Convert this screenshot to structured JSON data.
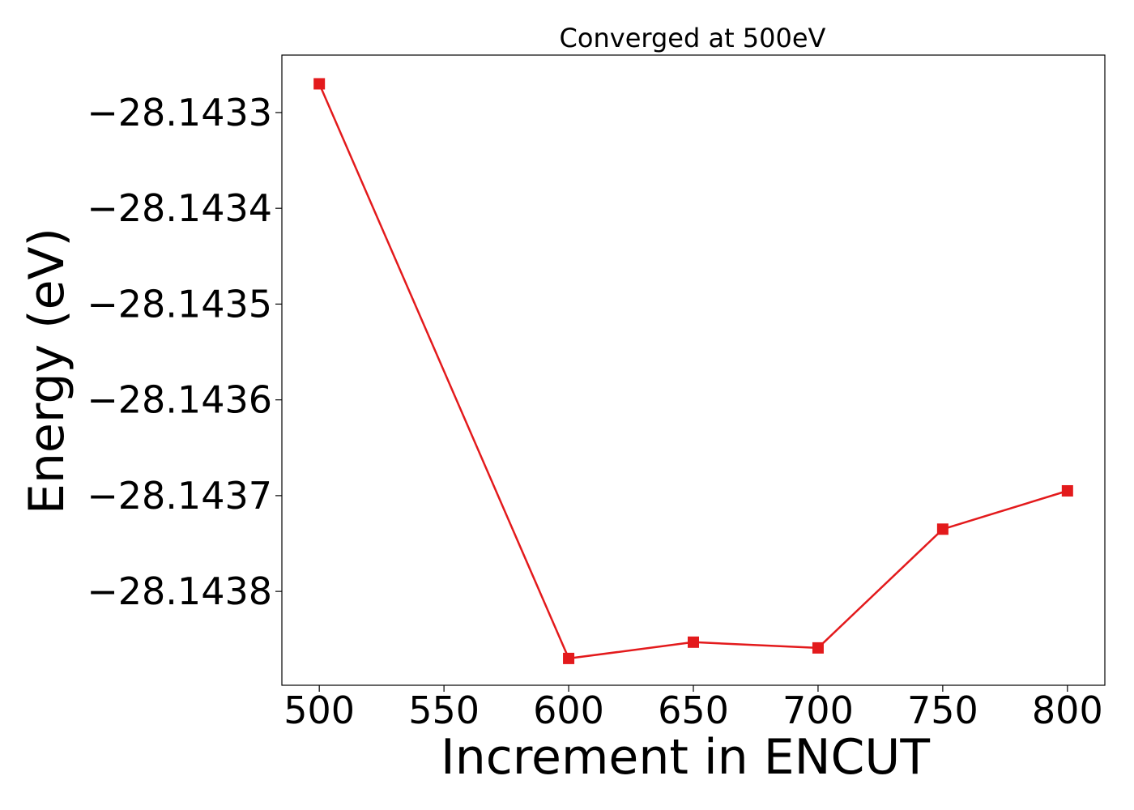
{
  "chart_data": {
    "type": "line",
    "title": "Converged at 500eV",
    "xlabel": "Increment in ENCUT",
    "ylabel": "Energy (eV)",
    "xlim": [
      485,
      815
    ],
    "ylim": [
      -28.143898,
      -28.14324
    ],
    "x_ticks": [
      500,
      550,
      600,
      650,
      700,
      750,
      800
    ],
    "x_tick_labels": [
      "500",
      "550",
      "600",
      "650",
      "700",
      "750",
      "800"
    ],
    "y_ticks": [
      -28.1433,
      -28.1434,
      -28.1435,
      -28.1436,
      -28.1437,
      -28.1438
    ],
    "y_tick_labels": [
      "−28.1433",
      "−28.1434",
      "−28.1435",
      "−28.1436",
      "−28.1437",
      "−28.1438"
    ],
    "grid": false,
    "marker": "square",
    "line_color": "#e31a1c",
    "series": [
      {
        "x": [
          500,
          600,
          650,
          700,
          750,
          800
        ],
        "y": [
          -28.14327,
          -28.14387,
          -28.143853,
          -28.143859,
          -28.143735,
          -28.143695
        ]
      }
    ]
  }
}
